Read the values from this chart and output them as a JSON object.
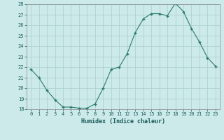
{
  "x": [
    0,
    1,
    2,
    3,
    4,
    5,
    6,
    7,
    8,
    9,
    10,
    11,
    12,
    13,
    14,
    15,
    16,
    17,
    18,
    19,
    20,
    21,
    22,
    23
  ],
  "y": [
    21.8,
    21.0,
    19.8,
    18.9,
    18.2,
    18.2,
    18.1,
    18.1,
    18.5,
    20.0,
    21.8,
    22.0,
    23.3,
    25.3,
    26.6,
    27.1,
    27.1,
    26.9,
    28.1,
    27.3,
    25.7,
    24.4,
    22.9,
    22.1
  ],
  "line_color": "#2d7a6a",
  "marker_color": "#2d7a6a",
  "bg_color": "#cceaea",
  "grid_color": "#aacccc",
  "xlabel": "Humidex (Indice chaleur)",
  "ylim": [
    18,
    28
  ],
  "yticks": [
    18,
    19,
    20,
    21,
    22,
    23,
    24,
    25,
    26,
    27,
    28
  ],
  "xticks": [
    0,
    1,
    2,
    3,
    4,
    5,
    6,
    7,
    8,
    9,
    10,
    11,
    12,
    13,
    14,
    15,
    16,
    17,
    18,
    19,
    20,
    21,
    22,
    23
  ],
  "xtick_labels": [
    "0",
    "1",
    "2",
    "3",
    "4",
    "5",
    "6",
    "7",
    "8",
    "9",
    "10",
    "11",
    "12",
    "13",
    "14",
    "15",
    "16",
    "17",
    "18",
    "19",
    "20",
    "21",
    "22",
    "23"
  ]
}
